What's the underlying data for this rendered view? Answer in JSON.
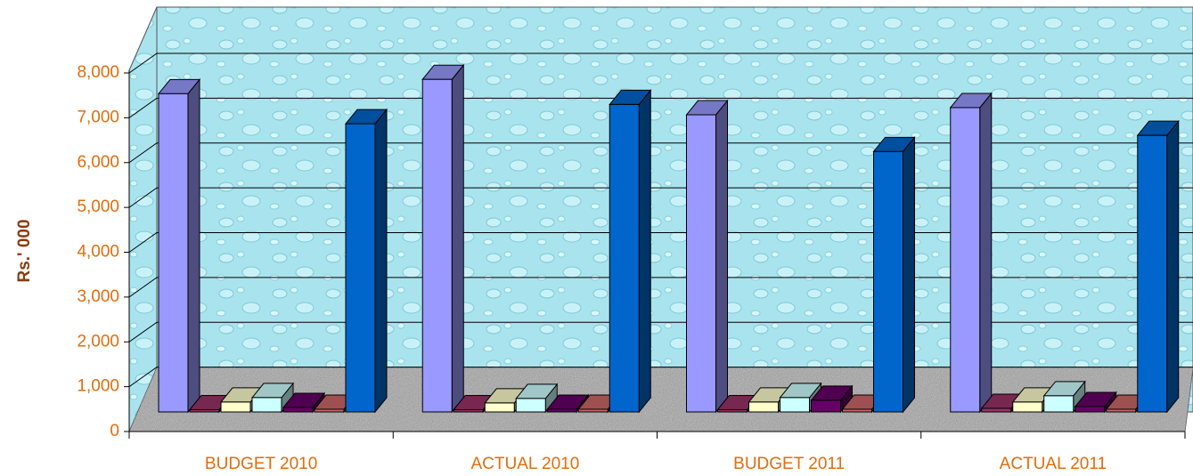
{
  "chart_data": {
    "type": "bar3d",
    "y_axis_label": "Rs.' 000",
    "categories": [
      "BUDGET 2010",
      "ACTUAL 2010",
      "BUDGET 2011",
      "ACTUAL 2011"
    ],
    "ylim": [
      0,
      8000
    ],
    "yticks": [
      0,
      {
        "value": 1000,
        "label": "1,000"
      },
      {
        "value": 2000,
        "label": "2,000"
      },
      {
        "value": 3000,
        "label": "3,000"
      },
      {
        "value": 4000,
        "label": "4,000"
      },
      {
        "value": 5000,
        "label": "5,000"
      },
      {
        "value": 6000,
        "label": "6,000"
      },
      {
        "value": 7000,
        "label": "7,000"
      },
      {
        "value": 8000,
        "label": "8,000"
      }
    ],
    "grid": true,
    "series": [
      {
        "color": "#9999ff",
        "values": [
          7100,
          7420,
          6630,
          6790
        ]
      },
      {
        "color": "#993366",
        "values": [
          50,
          50,
          50,
          80
        ]
      },
      {
        "color": "#ffffcc",
        "values": [
          220,
          200,
          220,
          220
        ]
      },
      {
        "color": "#ccffff",
        "values": [
          320,
          300,
          320,
          360
        ]
      },
      {
        "color": "#660066",
        "values": [
          100,
          60,
          260,
          120
        ]
      },
      {
        "color": "#cc6666",
        "values": [
          60,
          60,
          60,
          60
        ]
      },
      {
        "color": "#0066cc",
        "values": [
          6430,
          6860,
          5810,
          6170
        ]
      }
    ]
  }
}
